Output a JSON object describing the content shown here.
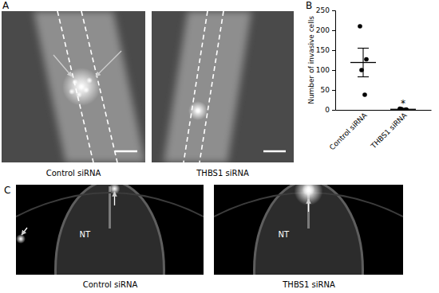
{
  "panel_labels": {
    "a": "A",
    "b": "B",
    "c": "C"
  },
  "panel_a": {
    "captions": [
      "Control siRNA",
      "THBS1 siRNA"
    ]
  },
  "panel_c": {
    "captions": [
      "Control siRNA",
      "THBS1 siRNA"
    ],
    "region_labels": [
      "NT",
      "NT"
    ]
  },
  "chart_data": {
    "type": "scatter",
    "y_label": "Number of invasive cells",
    "categories": [
      "Control siRNA",
      "THBS1 siRNA"
    ],
    "points": [
      [
        210,
        127,
        100,
        38
      ],
      [
        3,
        1,
        2,
        0
      ]
    ],
    "mean": [
      119,
      1.5
    ],
    "error": [
      36,
      0.6
    ],
    "significance": [
      null,
      "*"
    ],
    "ylim": [
      0,
      250
    ],
    "yticks": [
      0,
      50,
      100,
      150,
      200,
      250
    ],
    "color": "#000000",
    "marker": "circle"
  }
}
